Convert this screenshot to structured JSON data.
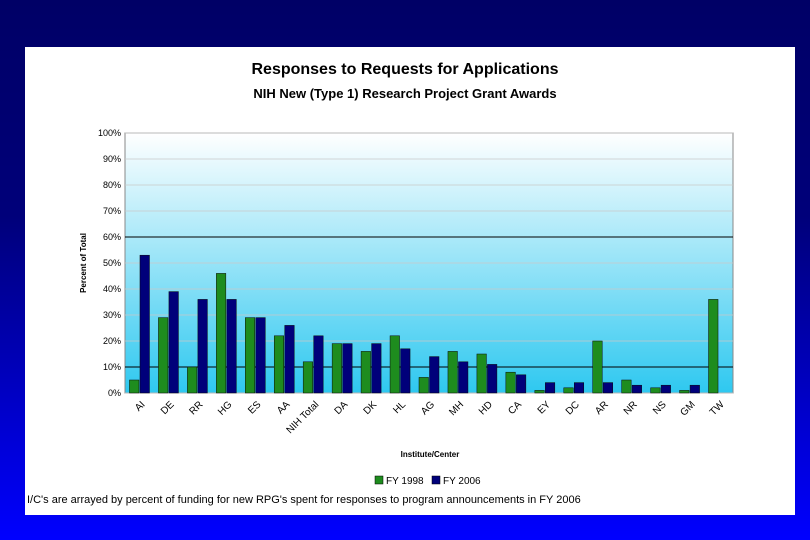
{
  "chart_data": {
    "type": "bar",
    "title": "Responses to Requests for Applications",
    "subtitle": "NIH New (Type 1) Research Project Grant Awards",
    "xlabel": "Institute/Center",
    "ylabel": "Percent of Total",
    "ylim": [
      0,
      100
    ],
    "yticks": [
      "0%",
      "10%",
      "20%",
      "30%",
      "40%",
      "50%",
      "60%",
      "70%",
      "80%",
      "90%",
      "100%"
    ],
    "reference_lines": [
      10,
      60
    ],
    "categories": [
      "AI",
      "DE",
      "RR",
      "HG",
      "ES",
      "AA",
      "NIH Total",
      "DA",
      "DK",
      "HL",
      "AG",
      "MH",
      "HD",
      "CA",
      "EY",
      "DC",
      "AR",
      "NR",
      "NS",
      "GM",
      "TW"
    ],
    "series": [
      {
        "name": "FY 1998",
        "color": "#1e8c1e",
        "values": [
          5,
          29,
          10,
          46,
          29,
          22,
          12,
          19,
          16,
          22,
          6,
          16,
          15,
          8,
          1,
          2,
          20,
          5,
          2,
          1,
          36
        ]
      },
      {
        "name": "FY 2006",
        "color": "#00007a",
        "values": [
          53,
          39,
          36,
          36,
          29,
          26,
          22,
          19,
          19,
          17,
          14,
          12,
          11,
          7,
          4,
          4,
          4,
          3,
          3,
          3,
          0
        ]
      }
    ],
    "legend_position": "bottom"
  },
  "footnote": "I/C's are arrayed by percent of funding for new RPG's spent for responses to program announcements in FY 2006"
}
